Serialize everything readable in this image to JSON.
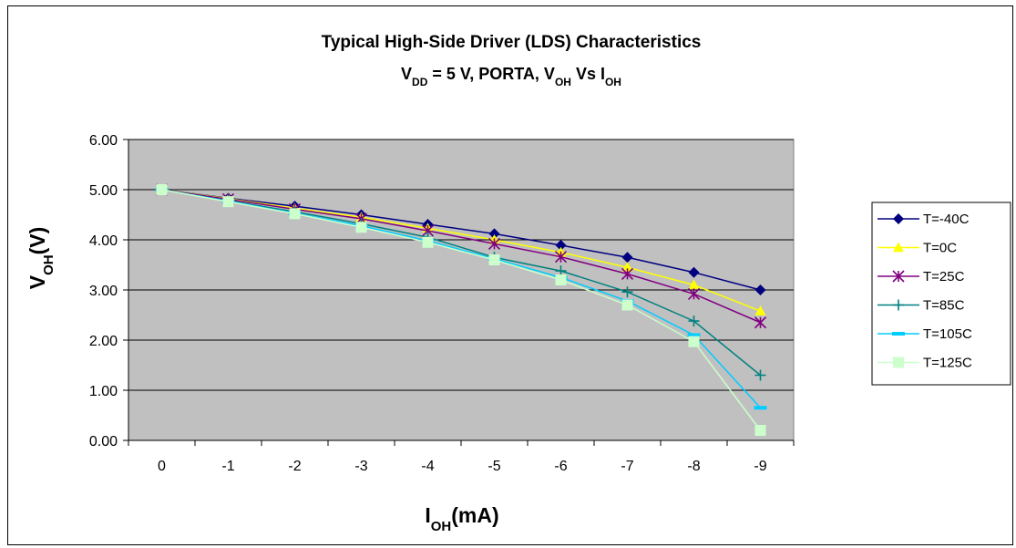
{
  "chart_data": {
    "type": "line",
    "title": "Typical High-Side Driver (LDS) Characteristics",
    "subtitle_parts": [
      {
        "text": "V",
        "sub": false
      },
      {
        "text": "DD",
        "sub": true
      },
      {
        "text": " = 5 V, PORTA, V",
        "sub": false
      },
      {
        "text": "OH",
        "sub": true
      },
      {
        "text": " Vs I",
        "sub": false
      },
      {
        "text": "OH",
        "sub": true
      }
    ],
    "xlabel_parts": [
      {
        "text": "I",
        "sub": false
      },
      {
        "text": "OH",
        "sub": true
      },
      {
        "text": "(mA)",
        "sub": false
      }
    ],
    "ylabel_parts": [
      {
        "text": "V",
        "sub": false
      },
      {
        "text": "OH",
        "sub": true
      },
      {
        "text": "(V)",
        "sub": false
      }
    ],
    "categories": [
      "0",
      "-1",
      "-2",
      "-3",
      "-4",
      "-5",
      "-6",
      "-7",
      "-8",
      "-9"
    ],
    "ylim": [
      0,
      6
    ],
    "yticks": [
      "0.00",
      "1.00",
      "2.00",
      "3.00",
      "4.00",
      "5.00",
      "6.00"
    ],
    "grid": "horizontal",
    "plot_background": "#c0c0c0",
    "legend_position": "right",
    "series": [
      {
        "name": "T=-40C",
        "color": "#000080",
        "marker": "diamond",
        "values": [
          5.0,
          4.83,
          4.67,
          4.5,
          4.31,
          4.12,
          3.89,
          3.65,
          3.35,
          3.0
        ]
      },
      {
        "name": "T=0C",
        "color": "#ffff00",
        "marker": "triangle",
        "values": [
          5.0,
          4.82,
          4.63,
          4.45,
          4.23,
          4.0,
          3.75,
          3.45,
          3.1,
          2.58
        ]
      },
      {
        "name": "T=25C",
        "color": "#800080",
        "marker": "asterisk",
        "values": [
          5.0,
          4.81,
          4.61,
          4.42,
          4.18,
          3.92,
          3.66,
          3.32,
          2.92,
          2.35
        ]
      },
      {
        "name": "T=85C",
        "color": "#008080",
        "marker": "plus",
        "values": [
          5.0,
          4.78,
          4.56,
          4.32,
          4.05,
          3.65,
          3.38,
          2.96,
          2.38,
          1.3
        ]
      },
      {
        "name": "T=105C",
        "color": "#00ccff",
        "marker": "dash",
        "values": [
          5.0,
          4.77,
          4.53,
          4.28,
          3.98,
          3.62,
          3.25,
          2.78,
          2.1,
          0.65
        ]
      },
      {
        "name": "T=125C",
        "color": "#ccffcc",
        "marker": "square",
        "values": [
          5.0,
          4.76,
          4.52,
          4.25,
          3.95,
          3.6,
          3.2,
          2.7,
          1.97,
          0.2
        ]
      }
    ]
  }
}
